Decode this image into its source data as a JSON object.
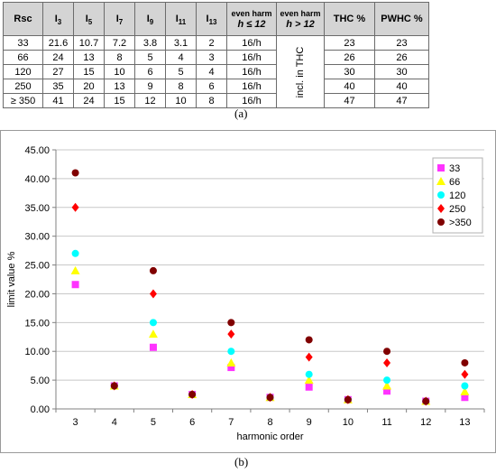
{
  "table": {
    "headers": [
      {
        "main": "Rsc",
        "sub": ""
      },
      {
        "main": "I",
        "sub": "3"
      },
      {
        "main": "I",
        "sub": "5"
      },
      {
        "main": "I",
        "sub": "7"
      },
      {
        "main": "I",
        "sub": "9"
      },
      {
        "main": "I",
        "sub": "11"
      },
      {
        "main": "I",
        "sub": "13"
      }
    ],
    "even_le": {
      "line1": "even harm",
      "line2": "h ≤ 12"
    },
    "even_gt": {
      "line1": "even harm",
      "line2": "h > 12"
    },
    "thc_header": "THC %",
    "pwhc_header": "PWHC %",
    "merged_note": "incl. in THC",
    "rows": [
      {
        "rsc": "33",
        "i3": "21.6",
        "i5": "10.7",
        "i7": "7.2",
        "i9": "3.8",
        "i11": "3.1",
        "i13": "2",
        "even": "16/h",
        "thc": "23",
        "pwhc": "23"
      },
      {
        "rsc": "66",
        "i3": "24",
        "i5": "13",
        "i7": "8",
        "i9": "5",
        "i11": "4",
        "i13": "3",
        "even": "16/h",
        "thc": "26",
        "pwhc": "26"
      },
      {
        "rsc": "120",
        "i3": "27",
        "i5": "15",
        "i7": "10",
        "i9": "6",
        "i11": "5",
        "i13": "4",
        "even": "16/h",
        "thc": "30",
        "pwhc": "30"
      },
      {
        "rsc": "250",
        "i3": "35",
        "i5": "20",
        "i7": "13",
        "i9": "9",
        "i11": "8",
        "i13": "6",
        "even": "16/h",
        "thc": "40",
        "pwhc": "40"
      },
      {
        "rsc": "≥ 350",
        "i3": "41",
        "i5": "24",
        "i7": "15",
        "i9": "12",
        "i11": "10",
        "i13": "8",
        "even": "16/h",
        "thc": "47",
        "pwhc": "47"
      }
    ]
  },
  "captions": {
    "a": "(a)",
    "b": "(b)"
  },
  "chart_data": {
    "type": "scatter",
    "xlabel": "harmonic order",
    "ylabel": "limit value %",
    "ylim": [
      0,
      45
    ],
    "ytick_step": 5,
    "ytick_decimals": 2,
    "x_categories": [
      3,
      4,
      5,
      6,
      7,
      8,
      9,
      10,
      11,
      12,
      13
    ],
    "grid": "horizontal",
    "legend_position": "top-right",
    "series": [
      {
        "name": "33",
        "color": "#ff33ff",
        "marker": "square",
        "values": [
          21.6,
          4,
          10.7,
          2.5,
          7.2,
          2,
          3.8,
          1.6,
          3.1,
          1.33,
          2
        ]
      },
      {
        "name": "66",
        "color": "#ffff00",
        "marker": "triangle",
        "values": [
          24,
          4,
          13,
          2.5,
          8,
          2,
          5,
          1.6,
          4,
          1.33,
          3
        ]
      },
      {
        "name": "120",
        "color": "#00ffff",
        "marker": "circle",
        "values": [
          27,
          4,
          15,
          2.5,
          10,
          2,
          6,
          1.6,
          5,
          1.33,
          4
        ]
      },
      {
        "name": "250",
        "color": "#ff0000",
        "marker": "diamond",
        "values": [
          35,
          4,
          20,
          2.5,
          13,
          2,
          9,
          1.6,
          8,
          1.33,
          6
        ]
      },
      {
        "name": ">350",
        "color": "#800000",
        "marker": "circle",
        "values": [
          41,
          4,
          24,
          2.5,
          15,
          2,
          12,
          1.6,
          10,
          1.33,
          8
        ]
      }
    ]
  }
}
